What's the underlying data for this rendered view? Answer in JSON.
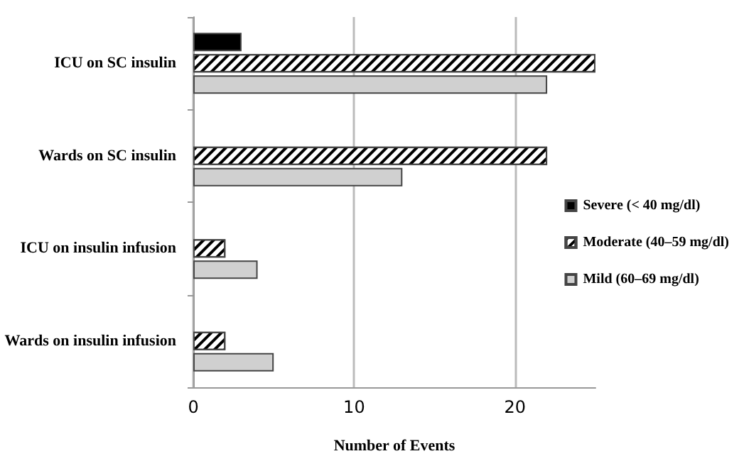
{
  "chart_data": {
    "type": "bar",
    "orientation": "horizontal",
    "xlabel": "Number of Events",
    "categories": [
      "ICU on SC insulin",
      "Wards on SC insulin",
      "ICU on insulin infusion",
      "Wards on insulin infusion"
    ],
    "series": [
      {
        "name": "Severe (< 40 mg/dl)",
        "color": "#000000",
        "values": [
          3,
          null,
          null,
          null
        ]
      },
      {
        "name": "Moderate (40–59 mg/dl)",
        "color": "#ffffff",
        "values": [
          25,
          22,
          2,
          2
        ]
      },
      {
        "name": "Mild (60–69 mg/dl)",
        "color": "#d0d0d0",
        "values": [
          22,
          13,
          4,
          5
        ]
      }
    ],
    "xlim": [
      0,
      25
    ],
    "xticks": [
      0,
      10,
      20
    ],
    "grid": "x",
    "legend": "right"
  }
}
